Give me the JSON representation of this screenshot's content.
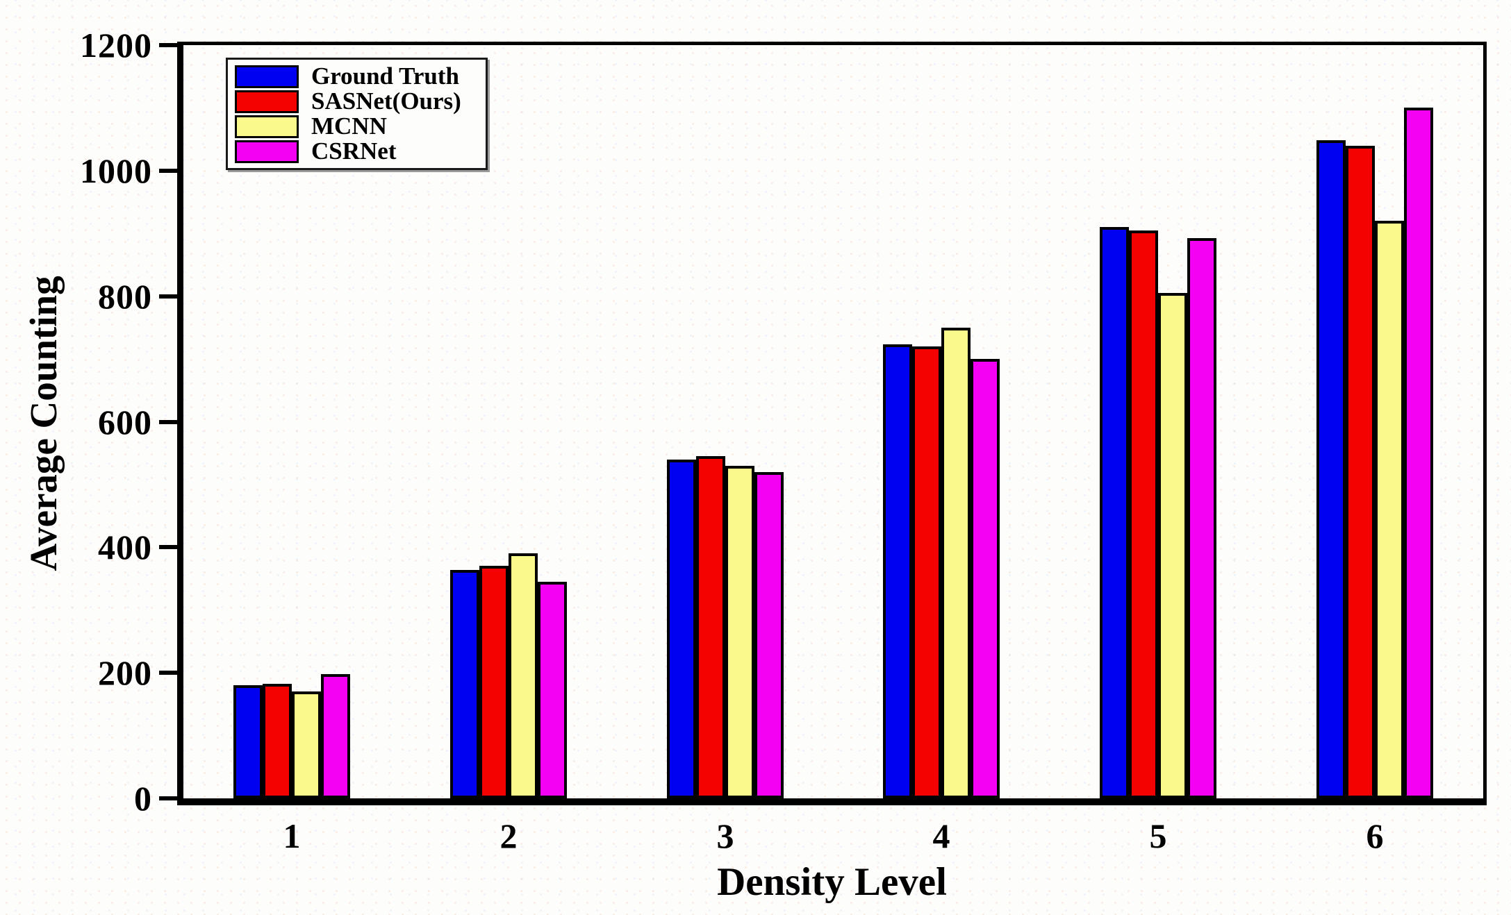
{
  "chart_data": {
    "type": "bar",
    "title": "",
    "xlabel": "Density Level",
    "ylabel": "Average Counting",
    "categories": [
      "1",
      "2",
      "3",
      "4",
      "5",
      "6"
    ],
    "series": [
      {
        "name": "Ground Truth",
        "color": "#0101F2",
        "values": [
          180,
          364,
          540,
          723,
          910,
          1048
        ]
      },
      {
        "name": "SASNet(Ours)",
        "color": "#F40101",
        "values": [
          183,
          370,
          545,
          720,
          905,
          1040
        ]
      },
      {
        "name": "MCNN",
        "color": "#FAFA8C",
        "values": [
          170,
          390,
          530,
          750,
          805,
          920
        ]
      },
      {
        "name": "CSRNet",
        "color": "#F401F4",
        "values": [
          198,
          345,
          520,
          700,
          893,
          1100
        ]
      }
    ],
    "ylim": [
      0,
      1200
    ],
    "yticks": [
      0,
      200,
      400,
      600,
      800,
      1000,
      1200
    ],
    "legend_position": "top-left",
    "grid": false,
    "axis_color": "#000000",
    "bar_outline_color": "#000000"
  }
}
